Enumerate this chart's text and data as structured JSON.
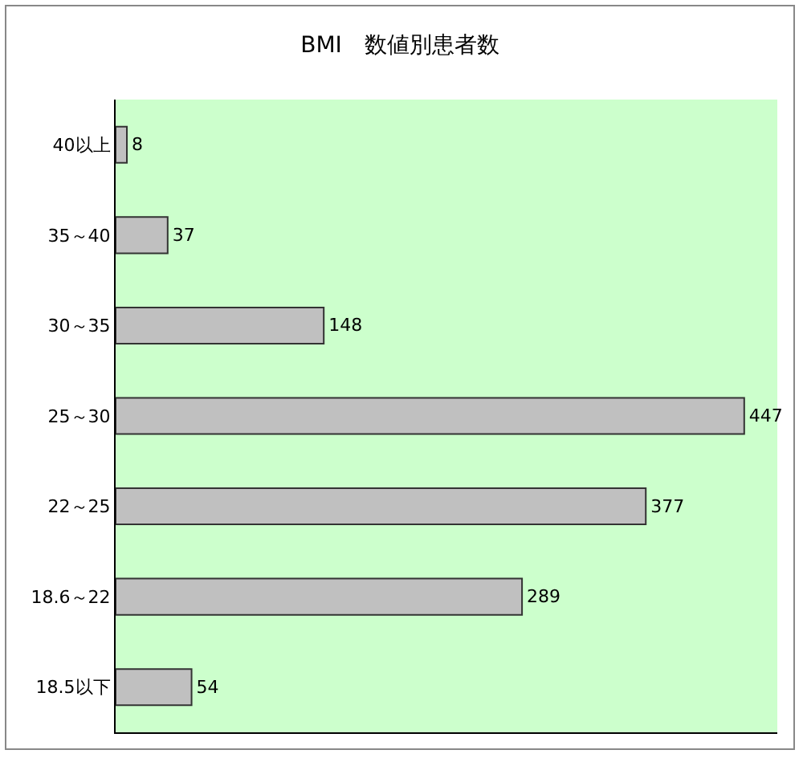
{
  "chart_data": {
    "type": "bar",
    "orientation": "horizontal",
    "title": "BMI　数値別患者数",
    "categories": [
      "40以上",
      "35～40",
      "30～35",
      "25～30",
      "22～25",
      "18.6～22",
      "18.5以下"
    ],
    "values": [
      8,
      37,
      148,
      447,
      377,
      289,
      54
    ],
    "color": "#c0c0c0",
    "data_labels": true,
    "tick_labels": "y"
  }
}
